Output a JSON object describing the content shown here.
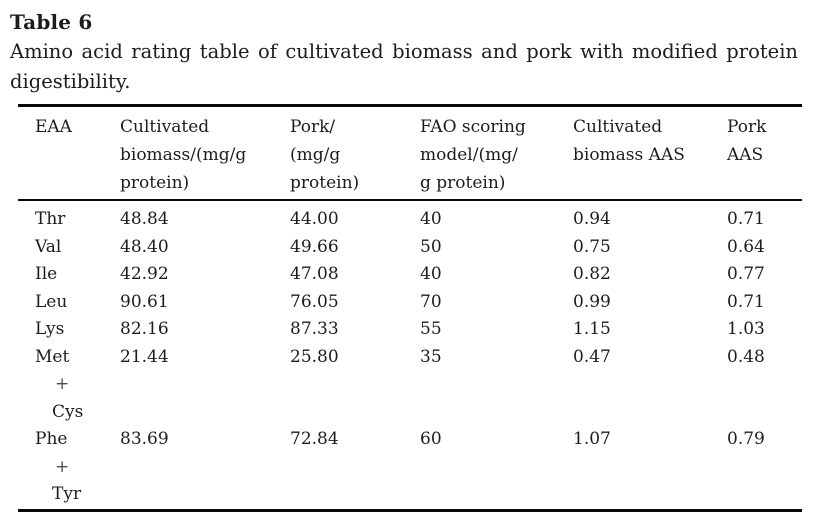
{
  "title": "Table 6",
  "caption_lines": [
    "Amino acid rating table of cultivated biomass and pork with modified protein",
    "digestibility."
  ],
  "colors": {
    "background": "#ffffff",
    "text": "#1c1c1c",
    "rule": "#0a0a0a",
    "plus_sign": "#4d4d4d"
  },
  "table": {
    "header": [
      {
        "label": "EAA",
        "lines": [
          "EAA"
        ]
      },
      {
        "label": "Cultivated biomass/(mg/g protein)",
        "lines": [
          "Cultivated",
          "biomass/(mg/g",
          "protein)"
        ]
      },
      {
        "label": "Pork/(mg/g protein)",
        "lines": [
          "Pork/",
          "(mg/g",
          "protein)"
        ]
      },
      {
        "label": "FAO scoring model/(mg/g protein)",
        "lines": [
          "FAO scoring",
          "model/(mg/",
          "g protein)"
        ]
      },
      {
        "label": "Cultivated biomass AAS",
        "lines": [
          "Cultivated",
          "biomass AAS"
        ]
      },
      {
        "label": "Pork AAS",
        "lines": [
          "Pork",
          "AAS"
        ]
      }
    ],
    "rows": [
      {
        "eaa": "Thr",
        "eaa_lines": [
          "Thr"
        ],
        "values": [
          "48.84",
          "44.00",
          "40",
          "0.94",
          "0.71"
        ]
      },
      {
        "eaa": "Val",
        "eaa_lines": [
          "Val"
        ],
        "values": [
          "48.40",
          "49.66",
          "50",
          "0.75",
          "0.64"
        ]
      },
      {
        "eaa": "Ile",
        "eaa_lines": [
          "Ile"
        ],
        "values": [
          "42.92",
          "47.08",
          "40",
          "0.82",
          "0.77"
        ]
      },
      {
        "eaa": "Leu",
        "eaa_lines": [
          "Leu"
        ],
        "values": [
          "90.61",
          "76.05",
          "70",
          "0.99",
          "0.71"
        ]
      },
      {
        "eaa": "Lys",
        "eaa_lines": [
          "Lys"
        ],
        "values": [
          "82.16",
          "87.33",
          "55",
          "1.15",
          "1.03"
        ]
      },
      {
        "eaa": "Met + Cys",
        "eaa_lines": [
          "Met",
          "+",
          "Cys"
        ],
        "values": [
          "21.44",
          "25.80",
          "35",
          "0.47",
          "0.48"
        ]
      },
      {
        "eaa": "Phe + Tyr",
        "eaa_lines": [
          "Phe",
          "+",
          "Tyr"
        ],
        "values": [
          "83.69",
          "72.84",
          "60",
          "1.07",
          "0.79"
        ]
      }
    ]
  }
}
